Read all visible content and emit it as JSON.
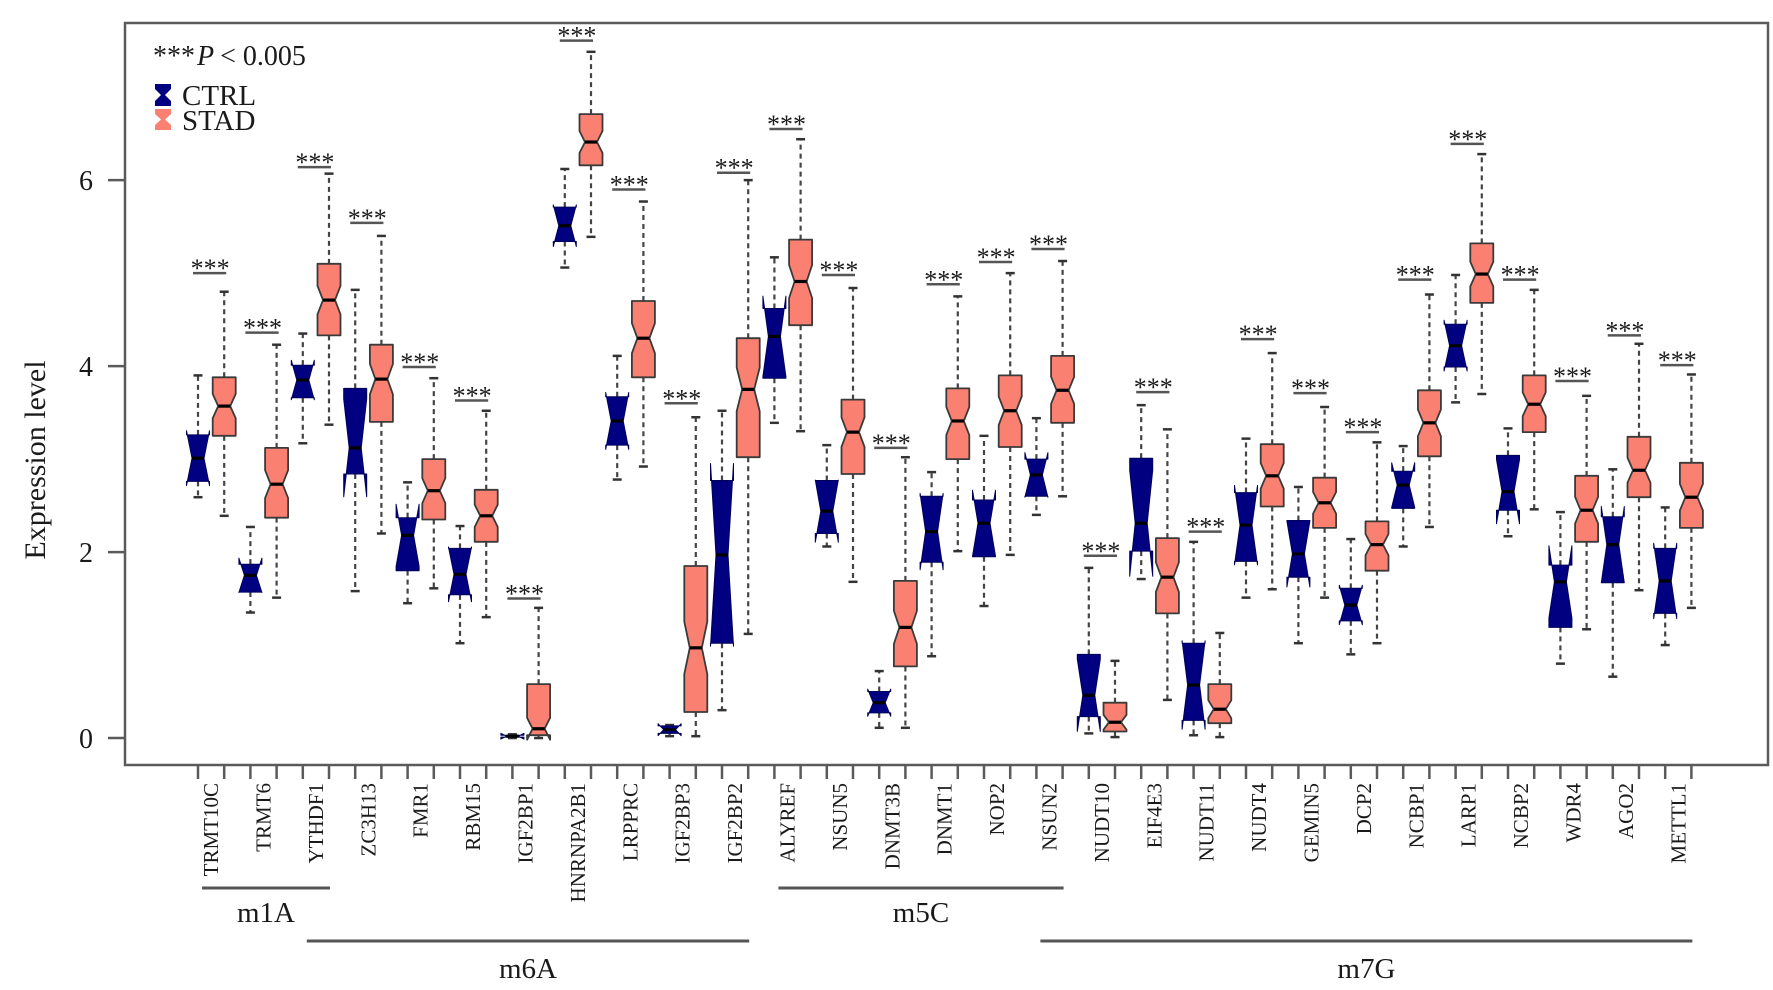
{
  "chart_data": {
    "type": "boxplot",
    "title": "",
    "xlabel": "",
    "ylabel": "Expression level",
    "ylim": [
      -0.29,
      7.69
    ],
    "yticks": [
      0,
      2,
      4,
      6
    ],
    "ytick_labels": [
      "0",
      "2",
      "4",
      "6"
    ],
    "grid": false,
    "legend": {
      "placement": "top-left",
      "entries": [
        {
          "name": "CTRL",
          "color": "#000080"
        },
        {
          "name": "STAD",
          "color": "#FA8072"
        }
      ]
    },
    "annotation": {
      "stars": "***",
      "p": "P",
      "rest": "< 0.005"
    },
    "stat_fields": [
      "whisker_low",
      "q1",
      "median",
      "q3",
      "whisker_high"
    ],
    "genes": [
      {
        "name": "TRMT10C",
        "CTRL": [
          2.59,
          2.76,
          3.01,
          3.26,
          3.9
        ],
        "STAD": [
          2.39,
          3.25,
          3.57,
          3.88,
          4.8
        ],
        "sig": "***",
        "sig_y": 5.0
      },
      {
        "name": "TRMT6",
        "CTRL": [
          1.35,
          1.57,
          1.75,
          1.87,
          2.27
        ],
        "STAD": [
          1.51,
          2.37,
          2.73,
          3.12,
          4.23
        ],
        "sig": "***",
        "sig_y": 4.36
      },
      {
        "name": "YTHDF1",
        "CTRL": [
          3.17,
          3.66,
          3.85,
          4.01,
          4.35
        ],
        "STAD": [
          3.37,
          4.33,
          4.71,
          5.1,
          6.07
        ],
        "sig": "***",
        "sig_y": 6.14
      },
      {
        "name": "ZC3H13",
        "CTRL": [
          1.58,
          2.84,
          3.12,
          3.76,
          4.82
        ],
        "STAD": [
          2.2,
          3.4,
          3.86,
          4.23,
          5.4
        ],
        "sig": "***",
        "sig_y": 5.54
      },
      {
        "name": "FMR1",
        "CTRL": [
          1.45,
          1.8,
          2.18,
          2.37,
          2.75
        ],
        "STAD": [
          1.61,
          2.35,
          2.66,
          3.0,
          3.87
        ],
        "sig": "***",
        "sig_y": 3.99
      },
      {
        "name": "RBM15",
        "CTRL": [
          1.02,
          1.54,
          1.76,
          2.04,
          2.28
        ],
        "STAD": [
          1.3,
          2.11,
          2.39,
          2.67,
          3.52
        ],
        "sig": "***",
        "sig_y": 3.63
      },
      {
        "name": "IGF2BP1",
        "CTRL": [
          0.0,
          0.01,
          0.02,
          0.03,
          0.04
        ],
        "STAD": [
          0.0,
          0.03,
          0.1,
          0.58,
          1.4
        ],
        "sig": "***",
        "sig_y": 1.5
      },
      {
        "name": "HNRNPA2B1",
        "CTRL": [
          5.06,
          5.34,
          5.51,
          5.71,
          6.12
        ],
        "STAD": [
          5.39,
          6.16,
          6.41,
          6.71,
          7.38
        ],
        "sig": "***",
        "sig_y": 7.5
      },
      {
        "name": "LRPPRC",
        "CTRL": [
          2.78,
          3.15,
          3.41,
          3.67,
          4.11
        ],
        "STAD": [
          2.92,
          3.88,
          4.3,
          4.7,
          5.77
        ],
        "sig": "***",
        "sig_y": 5.9
      },
      {
        "name": "IGF2BP3",
        "CTRL": [
          0.02,
          0.05,
          0.09,
          0.13,
          0.14
        ],
        "STAD": [
          0.02,
          0.28,
          0.97,
          1.85,
          3.45
        ],
        "sig": "***",
        "sig_y": 3.6
      },
      {
        "name": "IGF2BP2",
        "CTRL": [
          0.3,
          1.02,
          1.97,
          2.77,
          3.52
        ],
        "STAD": [
          1.12,
          3.02,
          3.75,
          4.3,
          6.0
        ],
        "sig": "***",
        "sig_y": 6.08
      },
      {
        "name": "ALYREF",
        "CTRL": [
          3.39,
          3.87,
          4.32,
          4.62,
          5.17
        ],
        "STAD": [
          3.3,
          4.44,
          4.91,
          5.36,
          6.44
        ],
        "sig": "***",
        "sig_y": 6.55
      },
      {
        "name": "NSUN5",
        "CTRL": [
          2.06,
          2.2,
          2.44,
          2.77,
          3.15
        ],
        "STAD": [
          1.68,
          2.84,
          3.29,
          3.64,
          4.84
        ],
        "sig": "***",
        "sig_y": 4.98
      },
      {
        "name": "DNMT3B",
        "CTRL": [
          0.11,
          0.27,
          0.38,
          0.5,
          0.72
        ],
        "STAD": [
          0.11,
          0.77,
          1.19,
          1.69,
          3.02
        ],
        "sig": "***",
        "sig_y": 3.12
      },
      {
        "name": "DNMT1",
        "CTRL": [
          0.88,
          1.89,
          2.22,
          2.6,
          2.86
        ],
        "STAD": [
          2.01,
          3.0,
          3.41,
          3.76,
          4.75
        ],
        "sig": "***",
        "sig_y": 4.88
      },
      {
        "name": "NOP2",
        "CTRL": [
          1.42,
          1.95,
          2.31,
          2.56,
          3.25
        ],
        "STAD": [
          1.97,
          3.13,
          3.52,
          3.9,
          5.0
        ],
        "sig": "***",
        "sig_y": 5.12
      },
      {
        "name": "NSUN2",
        "CTRL": [
          2.4,
          2.6,
          2.83,
          3.0,
          3.44
        ],
        "STAD": [
          2.6,
          3.39,
          3.74,
          4.11,
          5.13
        ],
        "sig": "***",
        "sig_y": 5.26
      },
      {
        "name": "NUDT10",
        "CTRL": [
          0.05,
          0.23,
          0.46,
          0.9,
          1.83
        ],
        "STAD": [
          0.01,
          0.07,
          0.17,
          0.38,
          0.83
        ],
        "sig": "***",
        "sig_y": 1.96
      },
      {
        "name": "EIF4E3",
        "CTRL": [
          1.71,
          2.01,
          2.31,
          3.01,
          3.58
        ],
        "STAD": [
          0.41,
          1.34,
          1.73,
          2.15,
          3.32
        ],
        "sig": "***",
        "sig_y": 3.72
      },
      {
        "name": "NUDT11",
        "CTRL": [
          0.03,
          0.19,
          0.57,
          1.02,
          2.11
        ],
        "STAD": [
          0.01,
          0.16,
          0.31,
          0.58,
          1.13
        ],
        "sig": "***",
        "sig_y": 2.22
      },
      {
        "name": "NUDT4",
        "CTRL": [
          1.51,
          1.9,
          2.29,
          2.64,
          3.22
        ],
        "STAD": [
          1.6,
          2.49,
          2.82,
          3.16,
          4.14
        ],
        "sig": "***",
        "sig_y": 4.29
      },
      {
        "name": "GEMIN5",
        "CTRL": [
          1.02,
          1.73,
          1.98,
          2.34,
          2.7
        ],
        "STAD": [
          1.51,
          2.26,
          2.53,
          2.8,
          3.56
        ],
        "sig": "***",
        "sig_y": 3.71
      },
      {
        "name": "DCP2",
        "CTRL": [
          0.9,
          1.26,
          1.43,
          1.61,
          2.14
        ],
        "STAD": [
          1.02,
          1.8,
          2.08,
          2.33,
          3.18
        ],
        "sig": "***",
        "sig_y": 3.29
      },
      {
        "name": "NCBP1",
        "CTRL": [
          2.06,
          2.47,
          2.72,
          2.87,
          3.14
        ],
        "STAD": [
          2.27,
          3.03,
          3.39,
          3.74,
          4.77
        ],
        "sig": "***",
        "sig_y": 4.93
      },
      {
        "name": "LARP1",
        "CTRL": [
          3.61,
          3.99,
          4.22,
          4.45,
          4.98
        ],
        "STAD": [
          3.7,
          4.68,
          4.99,
          5.32,
          6.28
        ],
        "sig": "***",
        "sig_y": 6.39
      },
      {
        "name": "NCBP2",
        "CTRL": [
          2.17,
          2.45,
          2.65,
          3.04,
          3.33
        ],
        "STAD": [
          2.46,
          3.29,
          3.59,
          3.9,
          4.82
        ],
        "sig": "***",
        "sig_y": 4.93
      },
      {
        "name": "WDR4",
        "CTRL": [
          0.8,
          1.19,
          1.68,
          1.86,
          2.43
        ],
        "STAD": [
          1.17,
          2.11,
          2.45,
          2.82,
          3.68
        ],
        "sig": "***",
        "sig_y": 3.84
      },
      {
        "name": "AGO2",
        "CTRL": [
          0.66,
          1.67,
          2.08,
          2.38,
          2.89
        ],
        "STAD": [
          1.59,
          2.59,
          2.88,
          3.24,
          4.24
        ],
        "sig": "***",
        "sig_y": 4.33
      },
      {
        "name": "METTL1",
        "CTRL": [
          1.0,
          1.34,
          1.69,
          2.04,
          2.48
        ],
        "STAD": [
          1.4,
          2.26,
          2.59,
          2.96,
          3.91
        ],
        "sig": "***",
        "sig_y": 4.01
      }
    ],
    "groups": [
      {
        "label": "m1A",
        "from": "TRMT10C",
        "to": "YTHDF1"
      },
      {
        "label": "m6A",
        "from": "YTHDF1",
        "to": "IGF2BP2"
      },
      {
        "label": "m5C",
        "from": "ALYREF",
        "to": "NSUN2"
      },
      {
        "label": "m7G",
        "from": "NSUN2",
        "to": "METTL1"
      }
    ]
  }
}
